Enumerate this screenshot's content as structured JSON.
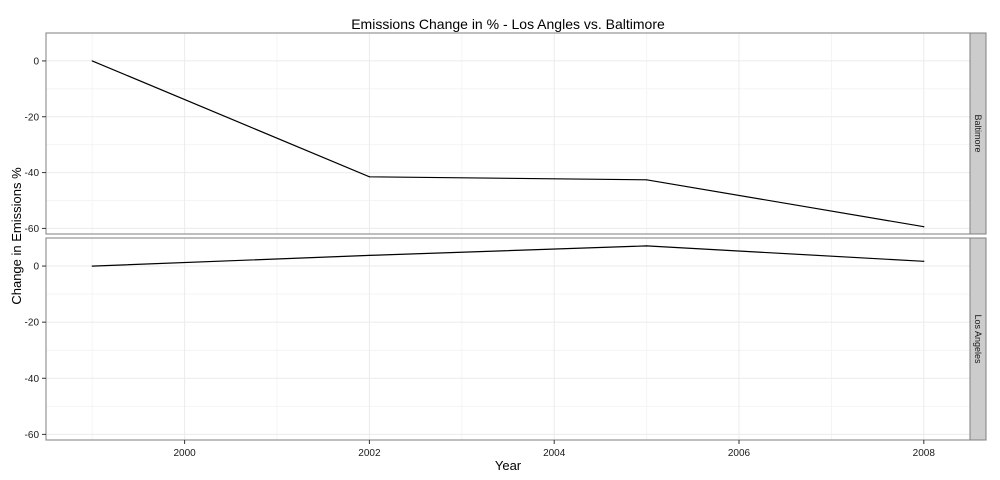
{
  "chart_data": {
    "type": "line",
    "title": "Emissions Change in % - Los Angles vs. Baltimore",
    "xlabel": "Year",
    "ylabel": "Change in Emissions %",
    "x": [
      1999,
      2002,
      2005,
      2008
    ],
    "xlim": [
      1998.5,
      2008.5
    ],
    "ylim": [
      -62,
      10
    ],
    "x_ticks": [
      "2000",
      "2002",
      "2004",
      "2006",
      "2008"
    ],
    "y_ticks": [
      "0",
      "-20",
      "-40",
      "-60"
    ],
    "grid": true,
    "panels": [
      {
        "label": "Baltimore",
        "values": [
          0,
          -41.5,
          -42.6,
          -59.4
        ]
      },
      {
        "label": "Los Angeles",
        "values": [
          0,
          3.8,
          7.2,
          1.7
        ]
      }
    ],
    "colors": {
      "line": "#000000",
      "grid": "#ebebeb",
      "panel_border": "#7f7f7f",
      "strip_fill": "#cccccc"
    }
  }
}
